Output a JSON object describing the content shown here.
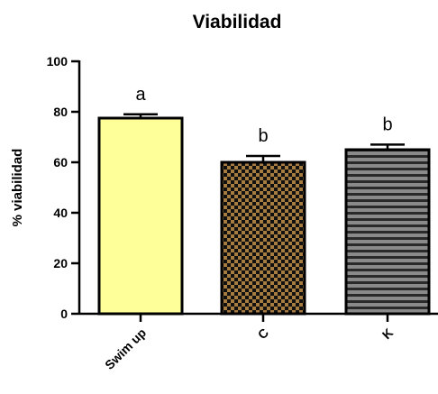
{
  "chart_data": {
    "type": "bar",
    "title": "Viabilidad",
    "xlabel": "",
    "ylabel": "% viabilidad",
    "ylim": [
      0,
      100
    ],
    "yticks": [
      "0",
      "20",
      "40",
      "60",
      "80",
      "100"
    ],
    "categories": [
      "Swim up",
      "C",
      "K"
    ],
    "values": [
      77.5,
      60,
      65
    ],
    "errors": [
      1.5,
      2.5,
      2
    ],
    "annotations": [
      "a",
      "b",
      "b"
    ],
    "fills": [
      {
        "pattern": "solid",
        "color": "#ffff99"
      },
      {
        "pattern": "checker",
        "color": "#a67c40",
        "color2": "#111111"
      },
      {
        "pattern": "stripes",
        "color": "#2a2a2a",
        "color2": "#8a8a8a"
      }
    ],
    "grid": false,
    "legend": "none"
  }
}
